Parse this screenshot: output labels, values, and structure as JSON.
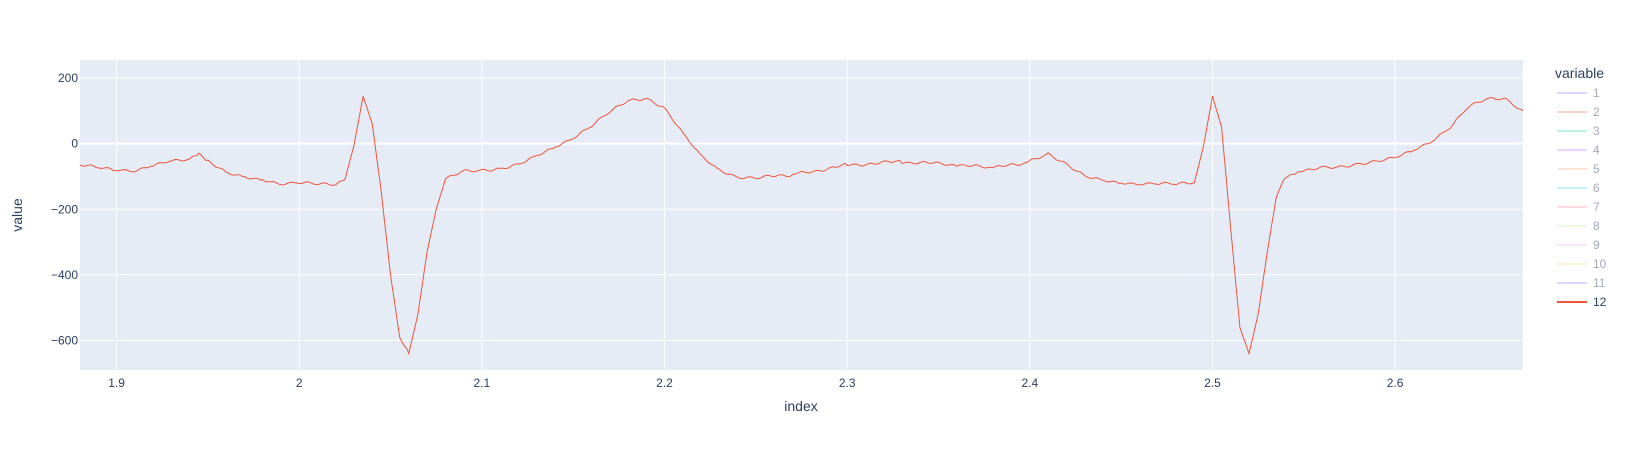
{
  "chart_data": {
    "type": "line",
    "xlabel": "index",
    "ylabel": "value",
    "xlim": [
      1.88,
      2.67
    ],
    "ylim": [
      -690,
      255
    ],
    "x_ticks": [
      1.9,
      2,
      2.1,
      2.2,
      2.3,
      2.4,
      2.5,
      2.6
    ],
    "x_tick_labels": [
      "1.9",
      "2",
      "2.1",
      "2.2",
      "2.3",
      "2.4",
      "2.5",
      "2.6"
    ],
    "y_ticks": [
      200,
      0,
      -200,
      -400,
      -600
    ],
    "y_tick_labels": [
      "200",
      "0",
      "−200",
      "−400",
      "−600"
    ],
    "grid": true,
    "background": "#e5ecf6",
    "legend": {
      "title": "variable",
      "placement": "right",
      "entries": [
        {
          "name": "1",
          "color": "#636efa",
          "visible": false
        },
        {
          "name": "2",
          "color": "#EF553B",
          "visible": false
        },
        {
          "name": "3",
          "color": "#00cc96",
          "visible": false
        },
        {
          "name": "4",
          "color": "#ab63fa",
          "visible": false
        },
        {
          "name": "5",
          "color": "#FFA15A",
          "visible": false
        },
        {
          "name": "6",
          "color": "#19d3f3",
          "visible": false
        },
        {
          "name": "7",
          "color": "#FF6692",
          "visible": false
        },
        {
          "name": "8",
          "color": "#B6E880",
          "visible": false
        },
        {
          "name": "9",
          "color": "#FF97FF",
          "visible": false
        },
        {
          "name": "10",
          "color": "#FECB52",
          "visible": false
        },
        {
          "name": "11",
          "color": "#636efa",
          "visible": false
        },
        {
          "name": "12",
          "color": "#EF553B",
          "visible": true
        }
      ]
    },
    "series": [
      {
        "name": "12",
        "color": "#EF553B",
        "x": [
          1.88,
          1.89,
          1.9,
          1.91,
          1.92,
          1.93,
          1.94,
          1.945,
          1.95,
          1.96,
          1.97,
          1.98,
          1.99,
          2.0,
          2.01,
          2.02,
          2.025,
          2.03,
          2.035,
          2.04,
          2.045,
          2.05,
          2.055,
          2.06,
          2.065,
          2.07,
          2.075,
          2.08,
          2.09,
          2.1,
          2.11,
          2.12,
          2.13,
          2.14,
          2.15,
          2.16,
          2.17,
          2.18,
          2.19,
          2.2,
          2.21,
          2.22,
          2.23,
          2.24,
          2.25,
          2.27,
          2.3,
          2.33,
          2.36,
          2.38,
          2.4,
          2.41,
          2.42,
          2.43,
          2.44,
          2.45,
          2.46,
          2.47,
          2.48,
          2.49,
          2.495,
          2.5,
          2.505,
          2.51,
          2.515,
          2.52,
          2.525,
          2.53,
          2.535,
          2.54,
          2.545,
          2.55,
          2.56,
          2.57,
          2.58,
          2.59,
          2.6,
          2.61,
          2.62,
          2.63,
          2.64,
          2.65,
          2.66,
          2.67
        ],
        "values": [
          -65,
          -75,
          -80,
          -80,
          -65,
          -55,
          -50,
          -30,
          -50,
          -90,
          -105,
          -110,
          -120,
          -118,
          -125,
          -125,
          -110,
          -5,
          145,
          60,
          -150,
          -400,
          -590,
          -640,
          -520,
          -330,
          -200,
          -110,
          -85,
          -80,
          -75,
          -65,
          -40,
          -10,
          20,
          55,
          95,
          130,
          140,
          110,
          30,
          -40,
          -80,
          -100,
          -105,
          -95,
          -65,
          -55,
          -65,
          -75,
          -55,
          -30,
          -60,
          -100,
          -115,
          -120,
          -120,
          -120,
          -125,
          -120,
          -10,
          145,
          50,
          -260,
          -560,
          -640,
          -520,
          -330,
          -160,
          -100,
          -90,
          -85,
          -75,
          -70,
          -60,
          -55,
          -45,
          -20,
          10,
          50,
          110,
          135,
          140,
          100
        ]
      }
    ]
  }
}
